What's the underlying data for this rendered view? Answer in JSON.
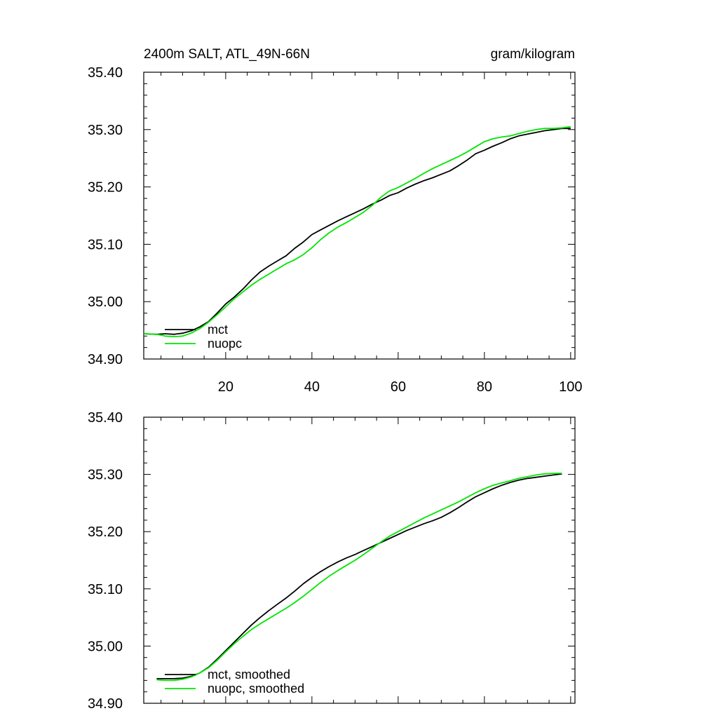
{
  "chart_data": [
    {
      "type": "line",
      "title": "2400m SALT, ATL_49N-66N",
      "units": "gram/kilogram",
      "xlim": [
        1,
        101
      ],
      "ylim": [
        34.9,
        35.4
      ],
      "yticks": [
        "34.90",
        "35.00",
        "35.10",
        "35.20",
        "35.30",
        "35.40"
      ],
      "xticks": [
        "20",
        "40",
        "60",
        "80",
        "100"
      ],
      "series": [
        {
          "name": "mct",
          "color": "#000000",
          "x": [
            1,
            4,
            6,
            8,
            10,
            12,
            14,
            16,
            18,
            20,
            22,
            24,
            26,
            28,
            30,
            32,
            34,
            36,
            38,
            40,
            42,
            44,
            46,
            48,
            50,
            52,
            54,
            56,
            58,
            60,
            62,
            64,
            66,
            68,
            70,
            72,
            74,
            76,
            78,
            80,
            82,
            84,
            86,
            88,
            90,
            92,
            94,
            96,
            98,
            100
          ],
          "values": [
            34.944,
            34.943,
            34.944,
            34.943,
            34.945,
            34.949,
            34.956,
            34.965,
            34.98,
            34.996,
            35.008,
            35.022,
            35.038,
            35.052,
            35.062,
            35.071,
            35.08,
            35.093,
            35.104,
            35.117,
            35.125,
            35.133,
            35.141,
            35.148,
            35.155,
            35.162,
            35.17,
            35.177,
            35.185,
            35.19,
            35.198,
            35.205,
            35.211,
            35.216,
            35.222,
            35.228,
            35.237,
            35.247,
            35.258,
            35.264,
            35.271,
            35.277,
            35.284,
            35.289,
            35.292,
            35.295,
            35.298,
            35.3,
            35.302,
            35.302
          ]
        },
        {
          "name": "nuopc",
          "color": "#00e600",
          "x": [
            1,
            4,
            6,
            8,
            10,
            12,
            14,
            16,
            18,
            20,
            22,
            24,
            26,
            28,
            30,
            32,
            34,
            36,
            38,
            40,
            42,
            44,
            46,
            48,
            50,
            52,
            54,
            56,
            58,
            60,
            62,
            64,
            66,
            68,
            70,
            72,
            74,
            76,
            78,
            80,
            82,
            84,
            86,
            88,
            90,
            92,
            94,
            96,
            98,
            100
          ],
          "values": [
            34.944,
            34.943,
            34.94,
            34.939,
            34.94,
            34.945,
            34.953,
            34.964,
            34.977,
            34.991,
            35.005,
            35.017,
            35.029,
            35.039,
            35.048,
            35.057,
            35.066,
            35.073,
            35.082,
            35.094,
            35.108,
            35.12,
            35.13,
            35.138,
            35.147,
            35.156,
            35.168,
            35.182,
            35.193,
            35.199,
            35.207,
            35.215,
            35.224,
            35.232,
            35.239,
            35.246,
            35.253,
            35.261,
            35.27,
            35.279,
            35.284,
            35.287,
            35.289,
            35.293,
            35.297,
            35.3,
            35.302,
            35.302,
            35.303,
            35.305
          ]
        }
      ]
    },
    {
      "type": "line",
      "xlim": [
        1,
        101
      ],
      "ylim": [
        34.9,
        35.4
      ],
      "yticks": [
        "34.90",
        "35.00",
        "35.10",
        "35.20",
        "35.30",
        "35.40"
      ],
      "series": [
        {
          "name": "mct, smoothed",
          "color": "#000000",
          "x": [
            4,
            6,
            8,
            10,
            12,
            14,
            16,
            18,
            20,
            22,
            24,
            26,
            28,
            30,
            32,
            34,
            36,
            38,
            40,
            42,
            44,
            46,
            48,
            50,
            52,
            54,
            56,
            58,
            60,
            62,
            64,
            66,
            68,
            70,
            72,
            74,
            76,
            78,
            80,
            82,
            84,
            86,
            88,
            90,
            92,
            94,
            96,
            98
          ],
          "values": [
            34.943,
            34.943,
            34.943,
            34.944,
            34.947,
            34.953,
            34.963,
            34.977,
            34.992,
            35.007,
            35.022,
            35.037,
            35.05,
            35.062,
            35.073,
            35.084,
            35.096,
            35.109,
            35.12,
            35.13,
            35.139,
            35.147,
            35.154,
            35.16,
            35.167,
            35.174,
            35.181,
            35.188,
            35.195,
            35.202,
            35.208,
            35.214,
            35.219,
            35.225,
            35.233,
            35.242,
            35.252,
            35.261,
            35.268,
            35.275,
            35.281,
            35.286,
            35.29,
            35.293,
            35.295,
            35.297,
            35.299,
            35.301
          ]
        },
        {
          "name": "nuopc, smoothed",
          "color": "#00e600",
          "x": [
            4,
            6,
            8,
            10,
            12,
            14,
            16,
            18,
            20,
            22,
            24,
            26,
            28,
            30,
            32,
            34,
            36,
            38,
            40,
            42,
            44,
            46,
            48,
            50,
            52,
            54,
            56,
            58,
            60,
            62,
            64,
            66,
            68,
            70,
            72,
            74,
            76,
            78,
            80,
            82,
            84,
            86,
            88,
            90,
            92,
            94,
            96,
            98
          ],
          "values": [
            34.941,
            34.94,
            34.94,
            34.942,
            34.946,
            34.953,
            34.962,
            34.975,
            34.99,
            35.004,
            35.017,
            35.029,
            35.039,
            35.048,
            35.057,
            35.066,
            35.076,
            35.087,
            35.099,
            35.111,
            35.122,
            35.132,
            35.141,
            35.15,
            35.16,
            35.171,
            35.182,
            35.192,
            35.2,
            35.208,
            35.216,
            35.224,
            35.231,
            35.238,
            35.245,
            35.252,
            35.26,
            35.268,
            35.275,
            35.281,
            35.285,
            35.289,
            35.293,
            35.296,
            35.299,
            35.301,
            35.302,
            35.302
          ]
        }
      ]
    }
  ]
}
